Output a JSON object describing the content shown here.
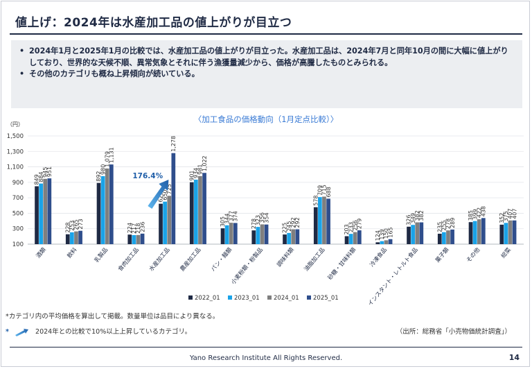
{
  "page": {
    "title": "値上げ：2024年は水産加工品の値上がりが目立つ",
    "bullets": [
      "2024年1月と2025年1月の比較では、水産加工品の値上がりが目立った。水産加工品は、2024年7月と同年10月の間に大幅に値上がりしており、世界的な天候不順、異常気象とそれに伴う漁獲量減少から、価格が高騰したものとみられる。",
      "その他のカテゴリも概ね上昇傾向が続いている。"
    ],
    "chart_title": "〈加工食品の価格動向（1月定点比較）〉",
    "note1": "*カテゴリ内の平均価格を算出して掲載。数量単位は品目により異なる。",
    "note2_star": "*",
    "note2": "2024年との比較で10%以上上昇しているカテゴリ。",
    "source": "（出所：総務省「小売物価統計調査」）",
    "footer": "Yano Research Institute All Rights Reserved.",
    "page_number": "14"
  },
  "chart_data": {
    "type": "bar",
    "ylabel": "（円）",
    "ylim": [
      100,
      1500
    ],
    "yticks": [
      "100",
      "300",
      "500",
      "700",
      "900",
      "1,100",
      "1,300",
      "1,500"
    ],
    "categories": [
      "酒類",
      "飲料",
      "乳製品",
      "食肉加工品",
      "水産加工品",
      "農産加工品",
      "パン・麺類",
      "小麦粉類・粉製品",
      "調味料類",
      "油脂加工品",
      "砂糖・甘味料類",
      "冷凍食品",
      "インスタント・レトルト食品",
      "菓子類",
      "その他",
      "総菜"
    ],
    "series": [
      {
        "name": "2022_01",
        "color": "#1f2a44",
        "values": [
          849,
          228,
          892,
          224,
          623,
          901,
          305,
          278,
          225,
          578,
          203,
          124,
          326,
          235,
          385,
          352
        ]
      },
      {
        "name": "2023_01",
        "color": "#1aa3e8",
        "values": [
          884,
          253,
          980,
          217,
          650,
          934,
          344,
          323,
          245,
          709,
          233,
          139,
          349,
          255,
          399,
          375
        ]
      },
      {
        "name": "2024_01",
        "color": "#7f7f7f",
        "values": [
          945,
          265,
          1079,
          218,
          725,
          981,
          377,
          356,
          292,
          715,
          256,
          150,
          382,
          278,
          422,
          407
        ]
      },
      {
        "name": "2025_01",
        "color": "#2f4e8c",
        "values": [
          951,
          273,
          1131,
          236,
          1278,
          1022,
          374,
          354,
          292,
          688,
          279,
          165,
          382,
          289,
          438,
          407
        ]
      }
    ],
    "value_labels": [
      [
        "849",
        "884",
        "945",
        "951"
      ],
      [
        "228",
        "253",
        "265",
        "273"
      ],
      [
        "892",
        "980",
        "1,079",
        "1,131"
      ],
      [
        "224",
        "217",
        "218",
        "236"
      ],
      [
        "623",
        "650",
        "725",
        "1,278"
      ],
      [
        "901",
        "934",
        "981",
        "1,022"
      ],
      [
        "305",
        "344",
        "377",
        "374"
      ],
      [
        "278",
        "323",
        "356",
        "354"
      ],
      [
        "225",
        "245",
        "292",
        "292"
      ],
      [
        "578",
        "709",
        "715",
        "688"
      ],
      [
        "203",
        "233",
        "256",
        "279"
      ],
      [
        "124",
        "139",
        "150",
        "165"
      ],
      [
        "326",
        "349",
        "382",
        "382"
      ],
      [
        "235",
        "255",
        "278",
        "289"
      ],
      [
        "385",
        "399",
        "422",
        "438"
      ],
      [
        "352",
        "375",
        "407",
        "407"
      ]
    ],
    "annotation": {
      "text": "176.4%",
      "category_index": 4
    },
    "grid": true,
    "legend_position": "bottom"
  }
}
